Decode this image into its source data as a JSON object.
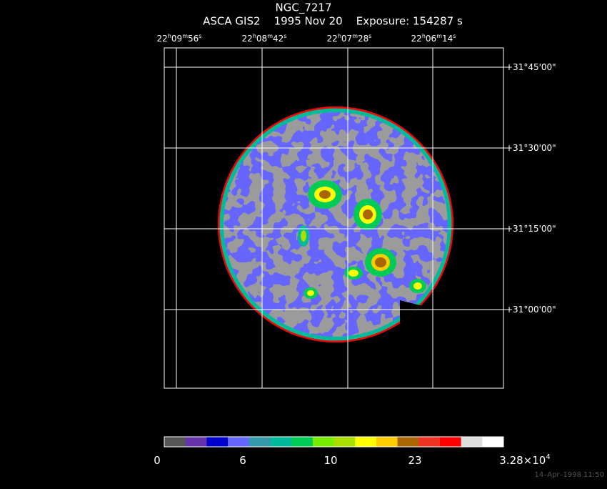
{
  "header": {
    "title": "NGC_7217",
    "subtitle": "ASCA GIS2    1995 Nov 20    Exposure: 154287 s"
  },
  "ra_labels": [
    [
      "22",
      "h",
      "09",
      "m",
      "56",
      "s"
    ],
    [
      "22",
      "h",
      "08",
      "m",
      "42",
      "s"
    ],
    [
      "22",
      "h",
      "07",
      "m",
      "28",
      "s"
    ],
    [
      "22",
      "h",
      "06",
      "m",
      "14",
      "s"
    ]
  ],
  "dec_labels": [
    "+31°45'00\"",
    "+31°30'00\"",
    "+31°15'00\"",
    "+31°00'00\""
  ],
  "colorbar": {
    "colors": [
      "#555555",
      "#6633aa",
      "#0000cc",
      "#6666ff",
      "#3399aa",
      "#00bb99",
      "#00cc55",
      "#77ee00",
      "#aadd00",
      "#ffff00",
      "#ffcc00",
      "#aa6600",
      "#ee3322",
      "#ff0000",
      "#dddddd",
      "#ffffff"
    ],
    "labels": [
      [
        "0"
      ],
      [
        "6"
      ],
      [
        "10"
      ],
      [
        "23"
      ],
      [
        "3.28×10",
        "4"
      ]
    ]
  },
  "footer": {
    "timestamp": "14–Apr–1998 11:50"
  }
}
